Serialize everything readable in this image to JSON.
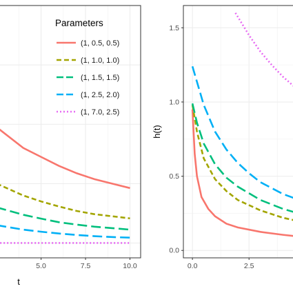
{
  "chart_data": [
    {
      "type": "line",
      "xlabel": "t",
      "ylabel": "",
      "xlim": [
        2.3,
        10.6
      ],
      "ylim": [
        -0.05,
        0.8
      ],
      "x_ticks": [
        "5.0",
        "7.5",
        "10.0"
      ],
      "x_tick_values": [
        5.0,
        7.5,
        10.0
      ],
      "grid": true,
      "legend": {
        "title": "Parameters",
        "placement": "top-right",
        "entries": [
          "(1, 0.5, 0.5)",
          "(1, 1.0, 1.0)",
          "(1, 1.5, 1.5)",
          "(1, 2.5, 2.0)",
          "(1, 7.0, 2.5)"
        ]
      },
      "series": [
        {
          "name": "(1, 0.5, 0.5)",
          "color": "#F8766D",
          "dash": "solid",
          "x": [
            2.5,
            4,
            5,
            6,
            7,
            8,
            9,
            10
          ],
          "y": [
            0.39,
            0.32,
            0.29,
            0.26,
            0.235,
            0.215,
            0.2,
            0.185
          ]
        },
        {
          "name": "(1, 1.0, 1.0)",
          "color": "#A3A500",
          "dash": "dashed",
          "x": [
            2.5,
            4,
            5,
            6,
            7,
            8,
            9,
            10
          ],
          "y": [
            0.2,
            0.16,
            0.14,
            0.123,
            0.108,
            0.097,
            0.09,
            0.083
          ]
        },
        {
          "name": "(1, 1.5, 1.5)",
          "color": "#00BF7D",
          "dash": "longdash",
          "x": [
            2.5,
            4,
            5,
            6,
            7,
            8,
            9,
            10
          ],
          "y": [
            0.12,
            0.095,
            0.082,
            0.07,
            0.062,
            0.055,
            0.05,
            0.045
          ]
        },
        {
          "name": "(1, 2.5, 2.0)",
          "color": "#00B0F6",
          "dash": "longdash",
          "x": [
            2.5,
            4,
            5,
            6,
            7,
            8,
            9,
            10
          ],
          "y": [
            0.06,
            0.045,
            0.038,
            0.032,
            0.027,
            0.023,
            0.02,
            0.018
          ]
        },
        {
          "name": "(1, 7.0, 2.5)",
          "color": "#E76BF3",
          "dash": "dotted",
          "x": [
            2.5,
            4,
            5,
            6,
            7,
            8,
            9,
            10
          ],
          "y": [
            0.0,
            0.0,
            0.0,
            0.0,
            0.0,
            0.0,
            0.0,
            0.0
          ]
        }
      ]
    },
    {
      "type": "line",
      "xlabel": "",
      "ylabel": "h(t)",
      "xlim": [
        -0.4,
        4.9
      ],
      "ylim": [
        -0.05,
        1.65
      ],
      "x_ticks": [
        "0.0",
        "2.5"
      ],
      "x_tick_values": [
        0.0,
        2.5
      ],
      "y_ticks": [
        "0.0",
        "0.5",
        "1.0",
        "1.5"
      ],
      "y_tick_values": [
        0.0,
        0.5,
        1.0,
        1.5
      ],
      "grid": true,
      "series": [
        {
          "name": "(1, 0.5, 0.5)",
          "color": "#F8766D",
          "dash": "solid",
          "x": [
            0,
            0.1,
            0.2,
            0.4,
            0.7,
            1.0,
            1.5,
            2.0,
            3.0,
            4.0,
            4.9
          ],
          "y": [
            0.95,
            0.65,
            0.5,
            0.36,
            0.28,
            0.23,
            0.18,
            0.155,
            0.125,
            0.105,
            0.09
          ]
        },
        {
          "name": "(1, 1.0, 1.0)",
          "color": "#A3A500",
          "dash": "dashed",
          "x": [
            0,
            0.2,
            0.5,
            1.0,
            1.5,
            2.0,
            3.0,
            4.0,
            4.9
          ],
          "y": [
            0.98,
            0.8,
            0.62,
            0.48,
            0.4,
            0.34,
            0.27,
            0.22,
            0.19
          ]
        },
        {
          "name": "(1, 1.5, 1.5)",
          "color": "#00BF7D",
          "dash": "longdash",
          "x": [
            0,
            0.2,
            0.5,
            1.0,
            1.5,
            2.0,
            3.0,
            4.0,
            4.9
          ],
          "y": [
            0.99,
            0.86,
            0.72,
            0.58,
            0.49,
            0.43,
            0.34,
            0.28,
            0.24
          ]
        },
        {
          "name": "(1, 2.5, 2.0)",
          "color": "#00B0F6",
          "dash": "longdash",
          "x": [
            0,
            0.5,
            1.0,
            1.5,
            2.0,
            2.5,
            3.0,
            4.0,
            4.9
          ],
          "y": [
            1.24,
            0.98,
            0.8,
            0.68,
            0.59,
            0.52,
            0.46,
            0.38,
            0.33
          ]
        },
        {
          "name": "(1, 7.0, 2.5)",
          "color": "#E76BF3",
          "dash": "dotted",
          "x": [
            1.9,
            2.5,
            3.0,
            3.5,
            4.0,
            4.9
          ],
          "y": [
            1.6,
            1.45,
            1.34,
            1.25,
            1.17,
            1.05
          ]
        }
      ]
    }
  ]
}
